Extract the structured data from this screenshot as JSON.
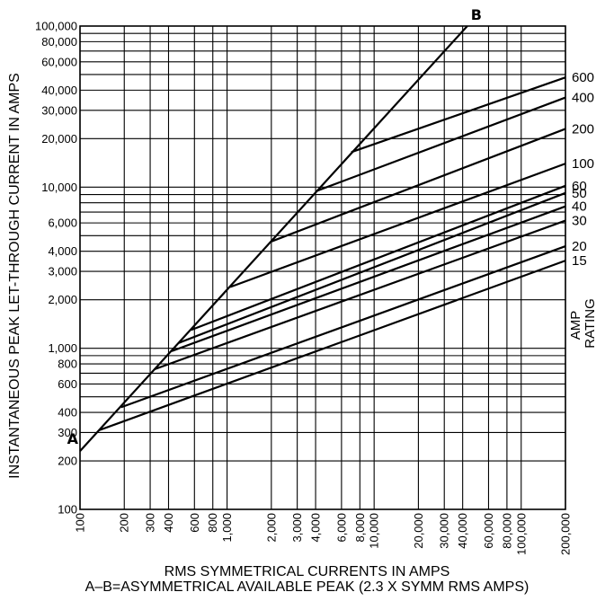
{
  "chart_data": {
    "type": "line",
    "scale": "log-log",
    "xlabel": "RMS SYMMETRICAL CURRENTS IN AMPS",
    "xlabel_note": "A–B=ASYMMETRICAL AVAILABLE PEAK (2.3 X SYMM RMS AMPS)",
    "ylabel": "INSTANTANEOUS PEAK LET-THROUGH CURRENT IN AMPS",
    "xlim": [
      100,
      200000
    ],
    "ylim": [
      100,
      100000
    ],
    "grid": true,
    "x_ticks": [
      {
        "value": 100,
        "label": "100"
      },
      {
        "value": 200,
        "label": "200"
      },
      {
        "value": 300,
        "label": "300"
      },
      {
        "value": 400,
        "label": "400"
      },
      {
        "value": 600,
        "label": "600"
      },
      {
        "value": 800,
        "label": "800"
      },
      {
        "value": 1000,
        "label": "1,000"
      },
      {
        "value": 2000,
        "label": "2,000"
      },
      {
        "value": 3000,
        "label": "3,000"
      },
      {
        "value": 4000,
        "label": "4,000"
      },
      {
        "value": 6000,
        "label": "6,000"
      },
      {
        "value": 8000,
        "label": "8,000"
      },
      {
        "value": 10000,
        "label": "10,000"
      },
      {
        "value": 20000,
        "label": "20,000"
      },
      {
        "value": 30000,
        "label": "30,000"
      },
      {
        "value": 40000,
        "label": "40,000"
      },
      {
        "value": 60000,
        "label": "60,000"
      },
      {
        "value": 80000,
        "label": "80,000"
      },
      {
        "value": 100000,
        "label": "100,000"
      },
      {
        "value": 200000,
        "label": "200,000"
      }
    ],
    "y_ticks": [
      {
        "value": 100,
        "label": "100"
      },
      {
        "value": 200,
        "label": "200"
      },
      {
        "value": 300,
        "label": "300"
      },
      {
        "value": 400,
        "label": "400"
      },
      {
        "value": 600,
        "label": "600"
      },
      {
        "value": 800,
        "label": "800"
      },
      {
        "value": 1000,
        "label": "1,000"
      },
      {
        "value": 2000,
        "label": "2,000"
      },
      {
        "value": 3000,
        "label": "3,000"
      },
      {
        "value": 4000,
        "label": "4,000"
      },
      {
        "value": 6000,
        "label": "6,000"
      },
      {
        "value": 10000,
        "label": "10,000"
      },
      {
        "value": 20000,
        "label": "20,000"
      },
      {
        "value": 30000,
        "label": "30,000"
      },
      {
        "value": 40000,
        "label": "40,000"
      },
      {
        "value": 60000,
        "label": "60,000"
      },
      {
        "value": 80000,
        "label": "80,000"
      },
      {
        "value": 100000,
        "label": "100,000"
      }
    ],
    "minor_y_gridlines": [
      500,
      700,
      900,
      5000,
      7000,
      8000,
      9000,
      50000,
      70000,
      90000
    ],
    "line_ab": {
      "start_label": "A",
      "end_label": "B",
      "points": [
        [
          100,
          230
        ],
        [
          43000,
          100000
        ]
      ]
    },
    "rating_title": "AMP\nRATING",
    "series": [
      {
        "name": "600",
        "points": [
          [
            7000,
            16500
          ],
          [
            200000,
            48000
          ]
        ]
      },
      {
        "name": "400",
        "points": [
          [
            4100,
            9500
          ],
          [
            200000,
            36000
          ]
        ]
      },
      {
        "name": "200",
        "points": [
          [
            2000,
            4600
          ],
          [
            200000,
            23000
          ]
        ]
      },
      {
        "name": "100",
        "points": [
          [
            1050,
            2400
          ],
          [
            200000,
            14000
          ]
        ]
      },
      {
        "name": "60",
        "points": [
          [
            570,
            1300
          ],
          [
            200000,
            10200
          ]
        ]
      },
      {
        "name": "50",
        "points": [
          [
            470,
            1080
          ],
          [
            200000,
            9200
          ]
        ]
      },
      {
        "name": "40",
        "points": [
          [
            420,
            960
          ],
          [
            200000,
            7600
          ]
        ]
      },
      {
        "name": "30",
        "points": [
          [
            320,
            740
          ],
          [
            200000,
            6200
          ]
        ]
      },
      {
        "name": "20",
        "points": [
          [
            190,
            430
          ],
          [
            200000,
            4300
          ]
        ]
      },
      {
        "name": "15",
        "points": [
          [
            135,
            310
          ],
          [
            200000,
            3500
          ]
        ]
      }
    ]
  }
}
